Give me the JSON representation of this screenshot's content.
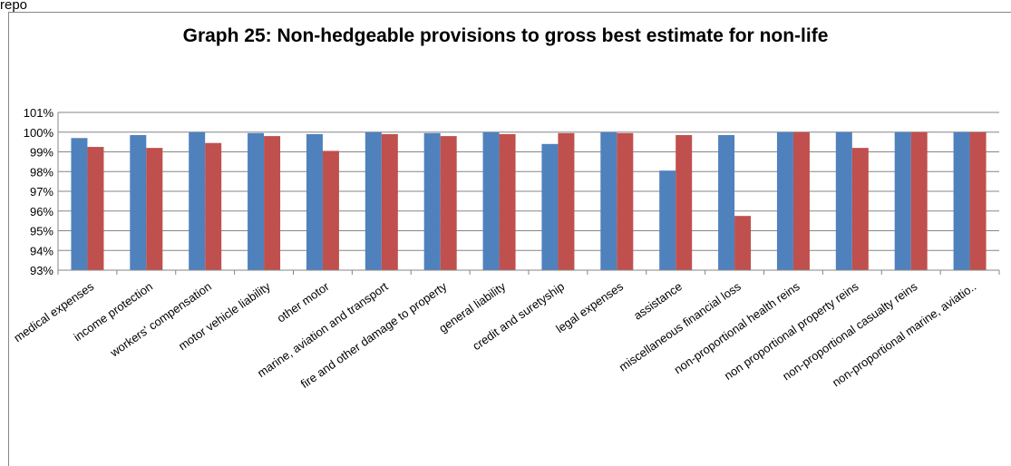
{
  "corner_label": "repo",
  "chart_data": {
    "type": "bar",
    "title": "Graph 25: Non-hedgeable provisions to gross best estimate for non-life",
    "xlabel": "",
    "ylabel": "",
    "ylim": [
      93,
      101
    ],
    "yticks": [
      "93%",
      "94%",
      "95%",
      "96%",
      "97%",
      "98%",
      "99%",
      "100%",
      "101%"
    ],
    "grid": true,
    "legend": "none",
    "categories": [
      "medical expenses",
      "income protection",
      "workers' compensation",
      "motor vehicle liability",
      "other motor",
      "marine, aviation and transport",
      "fire and other damage to property",
      "general liability",
      "credit and suretyship",
      "legal expenses",
      "assistance",
      "miscellaneous financial loss",
      "non-proportional health reins",
      "non proportional property reins",
      "non-proportional casualty reins",
      "non-proportional marine, aviatio.."
    ],
    "series": [
      {
        "color": "#4f81bd",
        "values": [
          99.7,
          99.85,
          100.0,
          99.95,
          99.9,
          100.0,
          99.95,
          100.0,
          99.4,
          100.0,
          98.05,
          99.85,
          100.0,
          100.0,
          100.0,
          100.0
        ]
      },
      {
        "color": "#c0504d",
        "values": [
          99.25,
          99.2,
          99.45,
          99.8,
          99.05,
          99.9,
          99.8,
          99.9,
          99.95,
          99.95,
          99.85,
          95.75,
          100.0,
          99.2,
          100.0,
          100.0
        ]
      }
    ]
  }
}
